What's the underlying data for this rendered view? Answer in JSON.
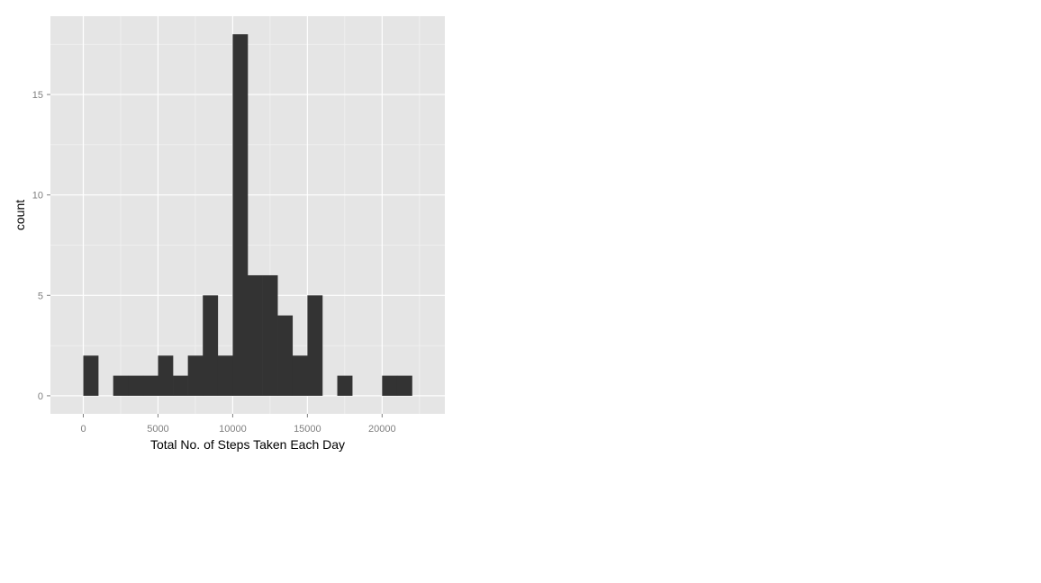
{
  "chart_data": {
    "type": "bar",
    "title": "",
    "xlabel": "Total No. of Steps Taken Each Day",
    "ylabel": "count",
    "bin_width": 1000,
    "bins": [
      {
        "start": 0,
        "count": 2
      },
      {
        "start": 2000,
        "count": 1
      },
      {
        "start": 3000,
        "count": 1
      },
      {
        "start": 4000,
        "count": 1
      },
      {
        "start": 5000,
        "count": 2
      },
      {
        "start": 6000,
        "count": 1
      },
      {
        "start": 7000,
        "count": 2
      },
      {
        "start": 8000,
        "count": 5
      },
      {
        "start": 9000,
        "count": 2
      },
      {
        "start": 10000,
        "count": 18
      },
      {
        "start": 11000,
        "count": 6
      },
      {
        "start": 12000,
        "count": 6
      },
      {
        "start": 13000,
        "count": 4
      },
      {
        "start": 14000,
        "count": 2
      },
      {
        "start": 15000,
        "count": 5
      },
      {
        "start": 17000,
        "count": 1
      },
      {
        "start": 20000,
        "count": 1
      },
      {
        "start": 21000,
        "count": 1
      }
    ],
    "x_ticks": [
      0,
      5000,
      10000,
      15000,
      20000
    ],
    "y_ticks": [
      0,
      5,
      10,
      15
    ],
    "xlim": [
      -2200,
      24200
    ],
    "ylim": [
      -0.9,
      18.9
    ],
    "grid": true,
    "colors": {
      "panel_background": "#e5e5e5",
      "grid_major": "#ffffff",
      "grid_minor": "#f2f2f2",
      "bar_fill": "#333333",
      "tick_label": "#7f7f7f",
      "axis_title": "#000000"
    }
  }
}
